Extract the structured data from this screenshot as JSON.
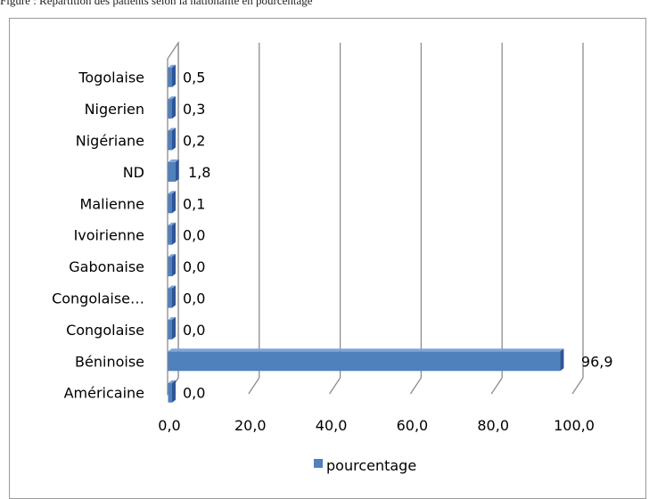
{
  "caption": {
    "text": "Figure : Répartition des patients selon la nationalité en pourcentage"
  },
  "colors": {
    "bar_front": "#4f81bd",
    "bar_top": "#7fa4d6",
    "bar_side": "#2f5597",
    "gridline": "#8c8c8c",
    "frame": "#9a9a9a"
  },
  "chart_data": {
    "type": "bar",
    "orientation": "horizontal",
    "style": "3d",
    "categories": [
      "Togolaise",
      "Nigerien",
      "Nigériane",
      "ND",
      "Malienne",
      "Ivoirienne",
      "Gabonaise",
      "Congolaise…",
      "Congolaise",
      "Béninoise",
      "Américaine"
    ],
    "series": [
      {
        "name": "pourcentage",
        "values": [
          0.5,
          0.3,
          0.2,
          1.8,
          0.1,
          0.0,
          0.0,
          0.0,
          0.0,
          96.9,
          0.0
        ],
        "labels": [
          "0,5",
          "0,3",
          "0,2",
          "1,8",
          "0,1",
          "0,0",
          "0,0",
          "0,0",
          "0,0",
          "96,9",
          "0,0"
        ]
      }
    ],
    "xlim": [
      0,
      100
    ],
    "xticks": [
      0,
      20,
      40,
      60,
      80,
      100
    ],
    "xtick_labels": [
      "0,0",
      "20,0",
      "40,0",
      "60,0",
      "80,0",
      "100,0"
    ],
    "xlabel": "",
    "ylabel": "",
    "grid": true,
    "legend": "bottom"
  }
}
